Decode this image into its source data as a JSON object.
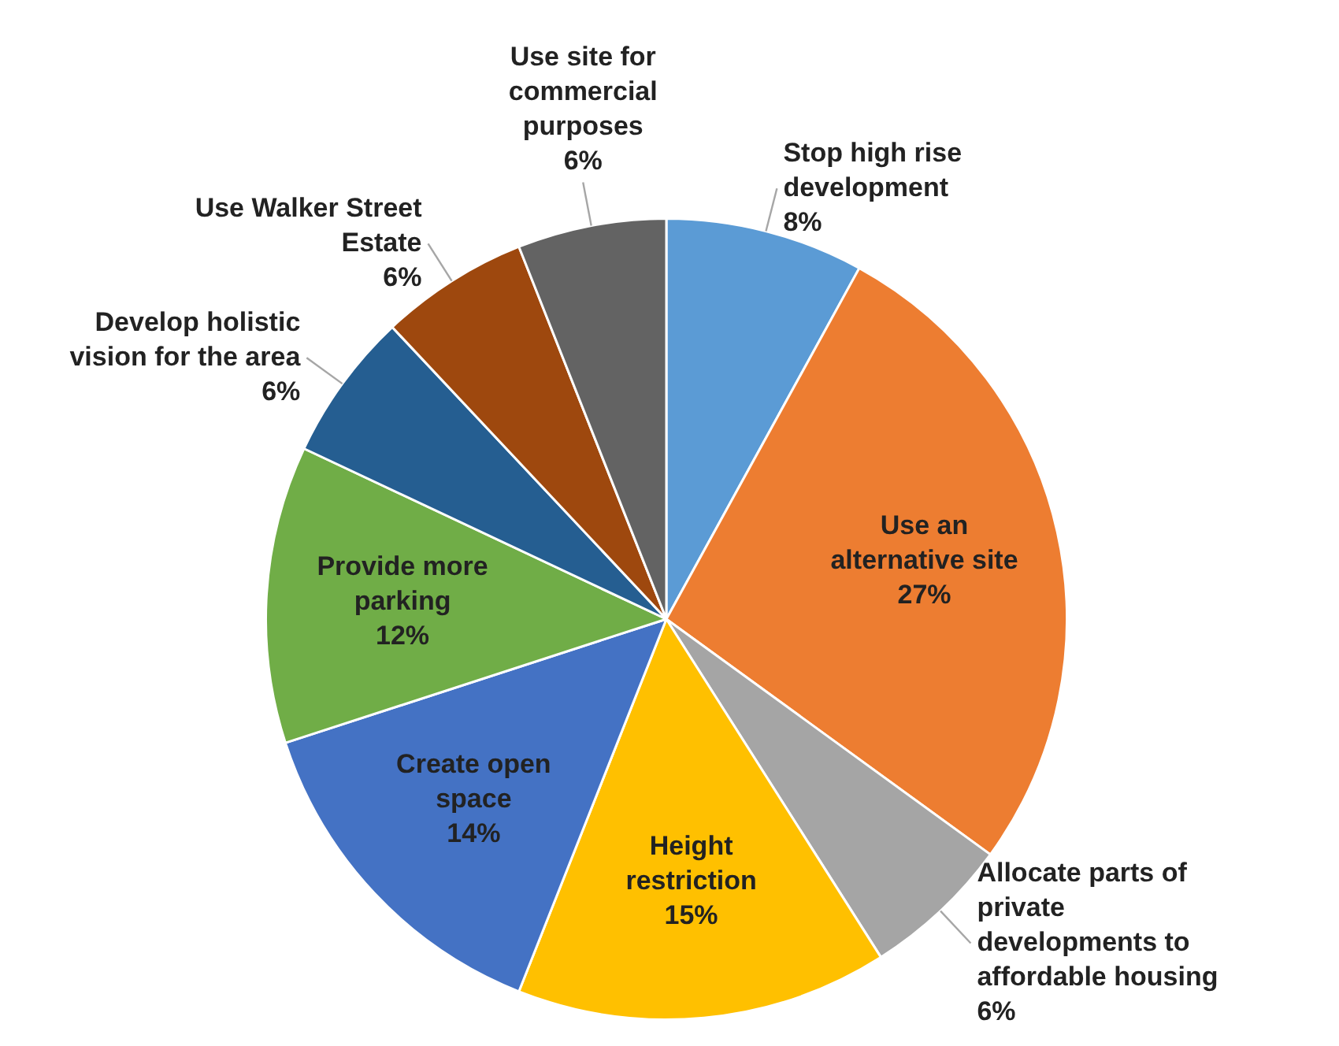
{
  "chart_data": {
    "type": "pie",
    "categories": [
      "Stop high rise development",
      "Use an alternative site",
      "Allocate parts of private developments to affordable housing",
      "Height restriction",
      "Create open space",
      "Provide more parking",
      "Develop holistic vision for the area",
      "Use Walker Street Estate",
      "Use site for commercial purposes"
    ],
    "values": [
      8,
      27,
      6,
      15,
      14,
      12,
      6,
      6,
      6
    ],
    "colors": [
      "#5b9bd5",
      "#ed7d31",
      "#a5a5a5",
      "#ffc000",
      "#4472c4",
      "#70ad47",
      "#255e91",
      "#9e480e",
      "#636363"
    ],
    "value_labels": [
      "8%",
      "27%",
      "6%",
      "15%",
      "14%",
      "12%",
      "6%",
      "6%",
      "6%"
    ]
  }
}
